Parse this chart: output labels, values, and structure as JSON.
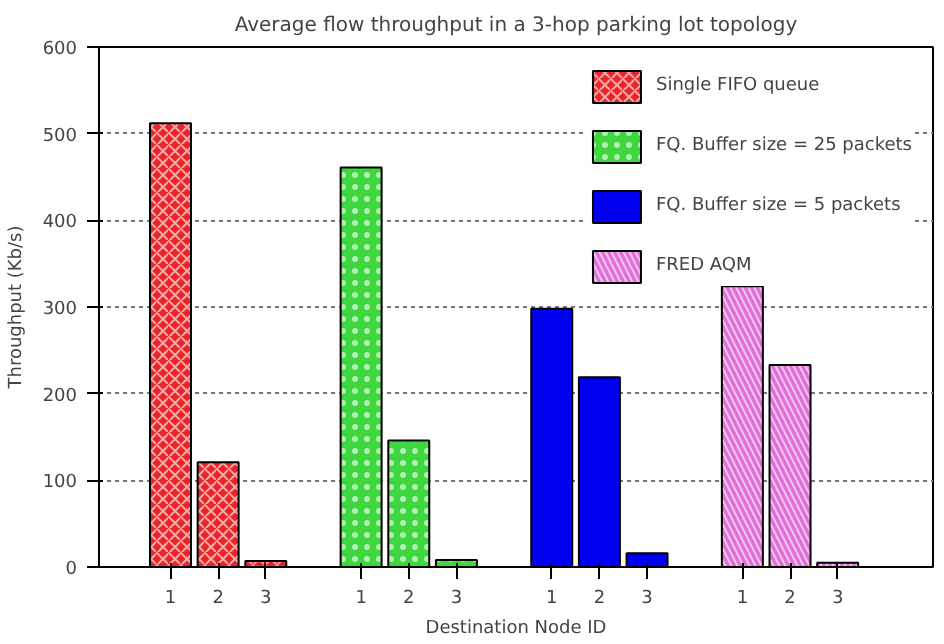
{
  "chart_data": {
    "type": "bar",
    "title": "Average flow throughput in a 3-hop parking lot topology",
    "xlabel": "Destination Node ID",
    "ylabel": "Throughput (Kb/s)",
    "categories": [
      "1",
      "2",
      "3",
      null,
      "1",
      "2",
      "3",
      null,
      "1",
      "2",
      "3",
      null,
      "1",
      "2",
      "3"
    ],
    "series": [
      {
        "name": "Single FIFO queue",
        "color": "#e8262a",
        "values": [
          512,
          121,
          7,
          null,
          null,
          null,
          null,
          null,
          null,
          null,
          null,
          null,
          null,
          null,
          null
        ]
      },
      {
        "name": "FQ. Buffer size = 25 packets",
        "color": "#3fd63f",
        "values": [
          null,
          null,
          null,
          null,
          461,
          146,
          8,
          null,
          null,
          null,
          null,
          null,
          null,
          null,
          null
        ]
      },
      {
        "name": "FQ. Buffer size = 5 packets",
        "color": "#0000f0",
        "values": [
          null,
          null,
          null,
          null,
          null,
          null,
          null,
          null,
          298,
          219,
          16,
          null,
          null,
          null,
          null
        ]
      },
      {
        "name": "FRED AQM",
        "color": "#e070d8",
        "values": [
          null,
          null,
          null,
          null,
          null,
          null,
          null,
          null,
          null,
          null,
          null,
          null,
          324,
          233,
          5
        ]
      }
    ],
    "ylim": [
      0,
      600
    ],
    "yticks": [
      0,
      100,
      200,
      300,
      400,
      500,
      600
    ],
    "grid": "y",
    "legend": "top right"
  }
}
